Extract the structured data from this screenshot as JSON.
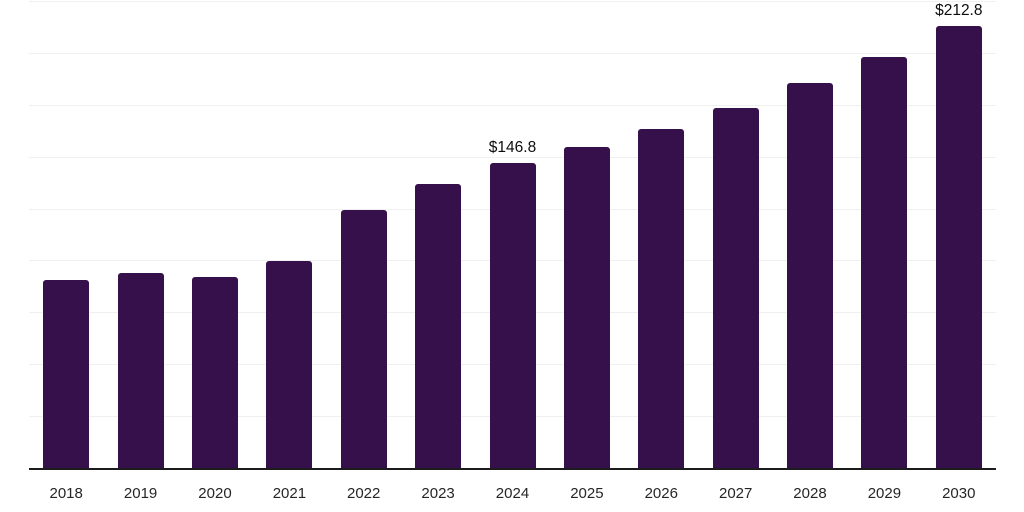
{
  "chart_data": {
    "type": "bar",
    "title": "",
    "xlabel": "",
    "ylabel": "",
    "categories": [
      "2018",
      "2019",
      "2020",
      "2021",
      "2022",
      "2023",
      "2024",
      "2025",
      "2026",
      "2027",
      "2028",
      "2029",
      "2030"
    ],
    "values": [
      90.5,
      93.9,
      92.0,
      99.7,
      124.1,
      136.9,
      146.8,
      154.9,
      163.4,
      173.6,
      185.6,
      198.1,
      212.8
    ],
    "data_labels": [
      {
        "category": "2024",
        "text": "$146.8"
      },
      {
        "category": "2030",
        "text": "$212.8"
      }
    ],
    "ylim": [
      0,
      225
    ],
    "gridline_step": 25,
    "grid": "horizontal-only",
    "legend_position": "none",
    "y_axis_tick_labels_visible": false,
    "bar_color": "#36104A",
    "axis_line_color": "#1c1c1c",
    "gridline_color": "#f0f0f0",
    "tick_label_color": "#262626",
    "data_label_color": "#0d0d0d"
  }
}
